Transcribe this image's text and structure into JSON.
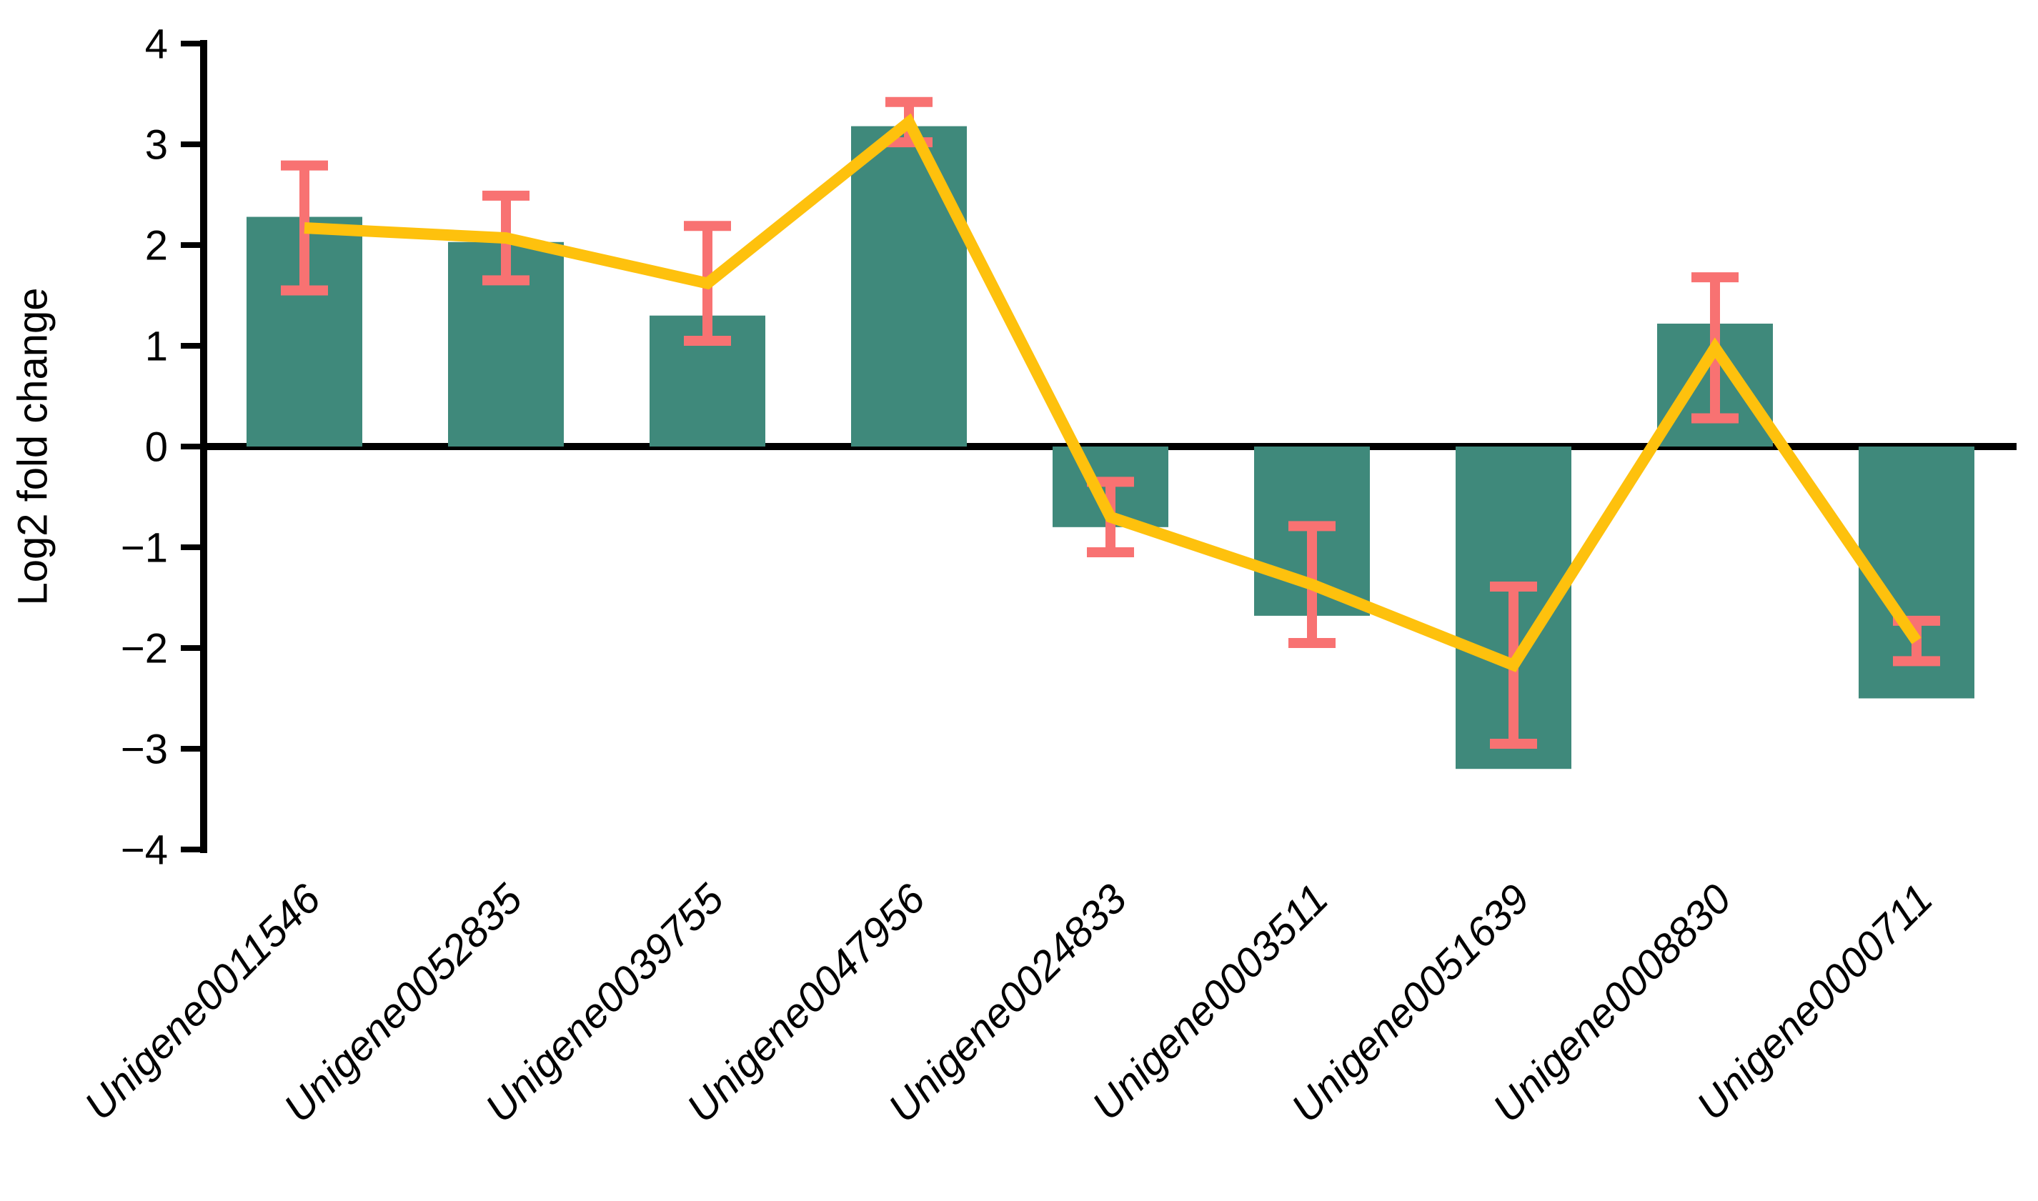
{
  "chart_data": {
    "type": "bar+line",
    "title": "",
    "ylabel": "Log2 fold change",
    "ylim": [
      -4,
      4
    ],
    "ytick_interval": 1,
    "yticks": [
      4,
      3,
      2,
      1,
      0,
      -1,
      -2,
      -3,
      -4
    ],
    "ytick_labels": [
      "4",
      "3",
      "2",
      "1",
      "0",
      "−1",
      "−2",
      "−3",
      "−4"
    ],
    "grid": false,
    "legend_position": "none",
    "background_color": "#FFFFFF",
    "axis_color": "#000000",
    "categories": [
      "Unigene0011546",
      "Unigene0052835",
      "Unigene0039755",
      "Unigene0047956",
      "Unigene0024833",
      "Unigene0003511",
      "Unigene0051639",
      "Unigene0008830",
      "Unigene0000711"
    ],
    "series": [
      {
        "name": "bars",
        "type": "bar",
        "color": "#3F897B",
        "values": [
          2.28,
          2.03,
          1.3,
          3.18,
          -0.8,
          -1.68,
          -3.2,
          1.22,
          -2.5
        ]
      },
      {
        "name": "line",
        "type": "line",
        "color": "#FEC10D",
        "values": [
          2.17,
          2.07,
          1.62,
          3.22,
          -0.7,
          -1.37,
          -2.17,
          0.98,
          -1.93
        ],
        "error": [
          0.62,
          0.42,
          0.57,
          0.2,
          0.35,
          0.58,
          0.78,
          0.7,
          0.2
        ],
        "error_color": "#F87272"
      }
    ]
  }
}
